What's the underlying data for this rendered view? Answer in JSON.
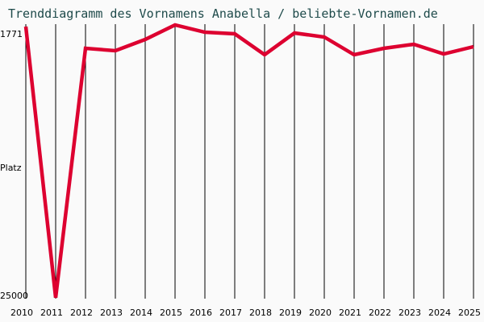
{
  "chart_data": {
    "type": "line",
    "title": "Trenddiagramm des Vornamens Anabella / beliebte-Vornamen.de",
    "xlabel": "",
    "ylabel": "Platz",
    "y_ticks": [
      "1771",
      "25000"
    ],
    "ylim": [
      1771,
      25000
    ],
    "y_inverted": true,
    "grid": "vertical",
    "series_color": "#dd0030",
    "x": [
      "2010",
      "2011",
      "2012",
      "2013",
      "2014",
      "2015",
      "2016",
      "2017",
      "2018",
      "2019",
      "2020",
      "2021",
      "2022",
      "2023",
      "2024",
      "2025"
    ],
    "series": [
      {
        "name": "Anabella",
        "values": [
          1128,
          25200,
          3058,
          3272,
          2271,
          985,
          1628,
          1771,
          3629,
          1700,
          2057,
          3629,
          3058,
          2700,
          3558,
          2915
        ]
      }
    ]
  }
}
